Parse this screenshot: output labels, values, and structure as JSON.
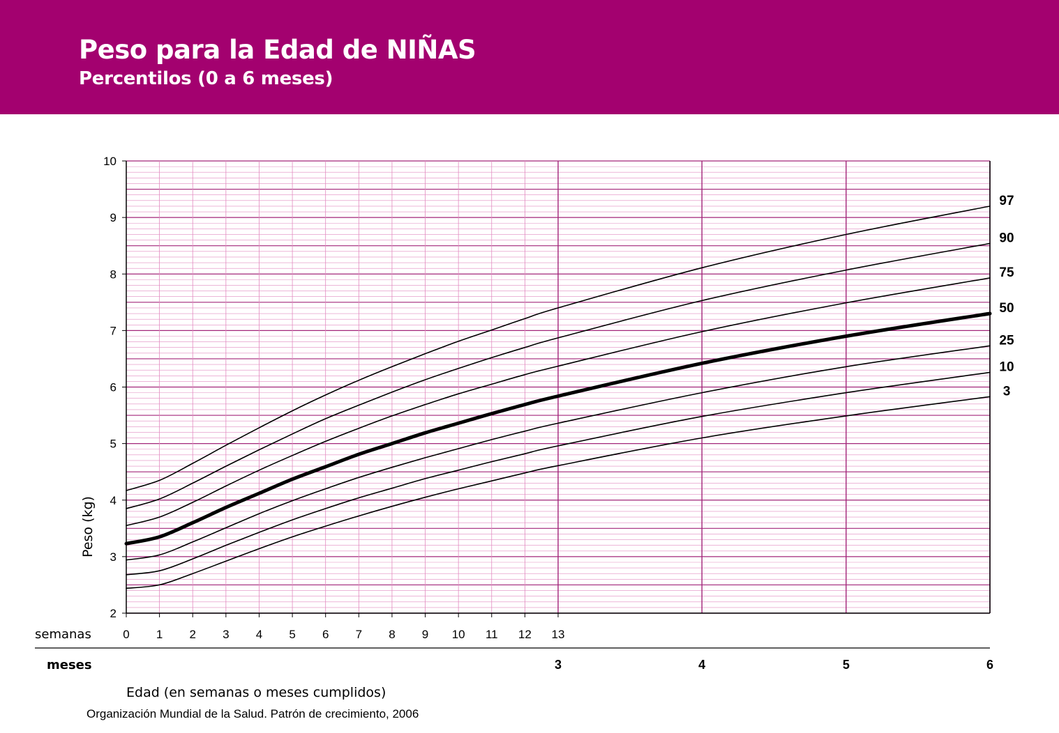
{
  "header": {
    "title": "Peso para la Edad de NIÑAS",
    "subtitle": "Percentilos (0 a 6 meses)"
  },
  "source": "Organización Mundial de la Salud. Patrón de crecimiento, 2006",
  "colors": {
    "banner": "#a3016f",
    "grid_minor": "#e28bc0",
    "grid_major": "#a3267a",
    "curve": "#000000"
  },
  "chart_data": {
    "type": "line",
    "title": "Peso para la Edad de NIÑAS",
    "subtitle": "Percentilos (0 a 6 meses)",
    "ylabel": "Peso (kg)",
    "xlabel": "Edad (en semanas o meses cumplidos)",
    "x_unit": "semanas",
    "xlim": [
      0,
      26
    ],
    "ylim": [
      2,
      10
    ],
    "y_ticks": [
      2,
      3,
      4,
      5,
      6,
      7,
      8,
      9,
      10
    ],
    "week_axis": {
      "label": "semanas",
      "ticks": [
        0,
        1,
        2,
        3,
        4,
        5,
        6,
        7,
        8,
        9,
        10,
        11,
        12,
        13
      ]
    },
    "month_axis": {
      "label": "meses",
      "ticks": [
        {
          "label": "3",
          "week": 13
        },
        {
          "label": "4",
          "week": 17.33
        },
        {
          "label": "5",
          "week": 21.67
        },
        {
          "label": "6",
          "week": 26
        }
      ]
    },
    "grid": true,
    "x": [
      0,
      1,
      2,
      3,
      4,
      5,
      6,
      7,
      8,
      9,
      10,
      11,
      12,
      13,
      17.33,
      21.67,
      26
    ],
    "series": [
      {
        "name": "97",
        "bold": false,
        "values": [
          4.17,
          4.35,
          4.65,
          4.97,
          5.28,
          5.58,
          5.86,
          6.12,
          6.36,
          6.59,
          6.81,
          7.01,
          7.21,
          7.4,
          8.11,
          8.7,
          9.2
        ]
      },
      {
        "name": "90",
        "bold": false,
        "values": [
          3.85,
          4.02,
          4.3,
          4.6,
          4.89,
          5.17,
          5.44,
          5.68,
          5.91,
          6.13,
          6.33,
          6.52,
          6.7,
          6.87,
          7.53,
          8.07,
          8.54
        ]
      },
      {
        "name": "75",
        "bold": false,
        "values": [
          3.55,
          3.7,
          3.96,
          4.25,
          4.53,
          4.79,
          5.04,
          5.27,
          5.49,
          5.69,
          5.88,
          6.05,
          6.22,
          6.37,
          6.98,
          7.49,
          7.93
        ]
      },
      {
        "name": "50",
        "bold": true,
        "values": [
          3.23,
          3.35,
          3.6,
          3.87,
          4.12,
          4.37,
          4.59,
          4.81,
          5.0,
          5.19,
          5.36,
          5.53,
          5.69,
          5.84,
          6.42,
          6.9,
          7.3
        ]
      },
      {
        "name": "25",
        "bold": false,
        "values": [
          2.94,
          3.03,
          3.26,
          3.51,
          3.76,
          3.99,
          4.2,
          4.4,
          4.58,
          4.75,
          4.91,
          5.07,
          5.22,
          5.36,
          5.9,
          6.36,
          6.73
        ]
      },
      {
        "name": "10",
        "bold": false,
        "values": [
          2.68,
          2.75,
          2.96,
          3.2,
          3.43,
          3.65,
          3.85,
          4.04,
          4.21,
          4.38,
          4.53,
          4.68,
          4.82,
          4.96,
          5.48,
          5.9,
          6.26
        ]
      },
      {
        "name": "3",
        "bold": false,
        "values": [
          2.44,
          2.5,
          2.7,
          2.92,
          3.14,
          3.35,
          3.54,
          3.72,
          3.89,
          4.05,
          4.2,
          4.34,
          4.48,
          4.61,
          5.1,
          5.49,
          5.83
        ]
      }
    ]
  }
}
